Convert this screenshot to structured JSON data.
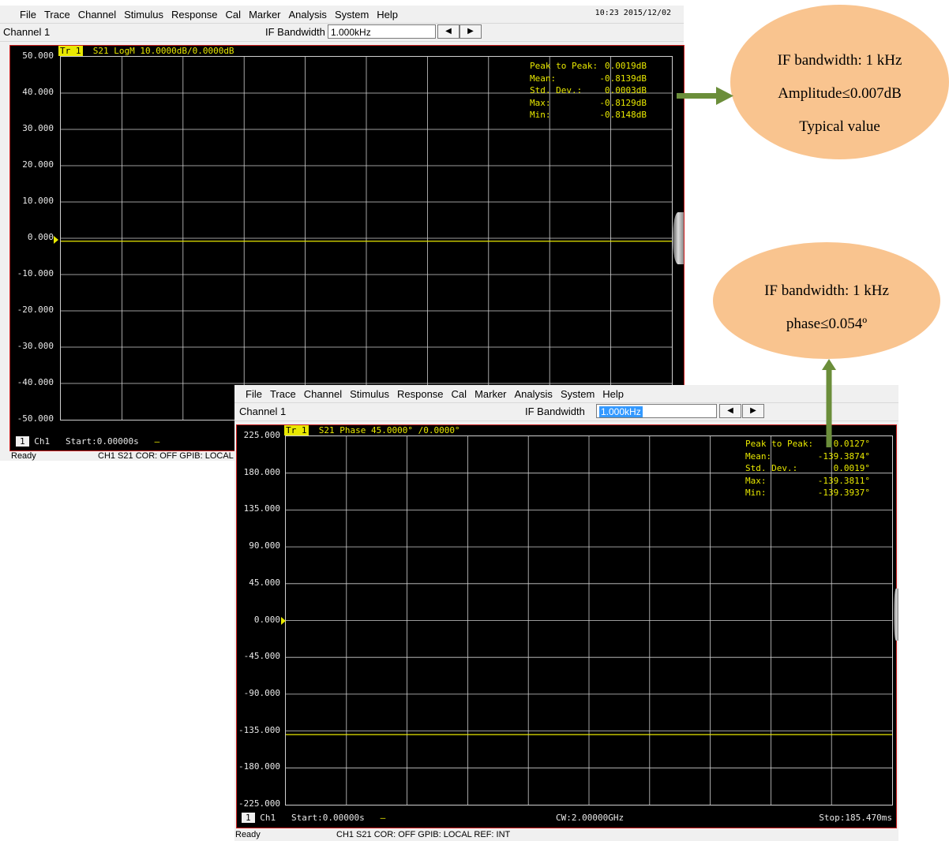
{
  "menu": [
    "File",
    "Trace",
    "Channel",
    "Stimulus",
    "Response",
    "Cal",
    "Marker",
    "Analysis",
    "System",
    "Help"
  ],
  "win1": {
    "clock": "10:23 2015/12/02",
    "channel": "Channel 1",
    "ifbw_label": "IF Bandwidth",
    "ifbw_value": "1.000kHz",
    "trace_badge": "Tr 1",
    "trace_label": "S21 LogM 10.0000dB/0.0000dB",
    "y_labels": [
      "50.000",
      "40.000",
      "30.000",
      "20.000",
      "10.000",
      "0.000",
      "-10.000",
      "-20.000",
      "-30.000",
      "-40.000",
      "-50.000"
    ],
    "stats": [
      {
        "k": "Peak to Peak:",
        "v": "0.0019dB"
      },
      {
        "k": "Mean:",
        "v": "-0.8139dB"
      },
      {
        "k": "Std. Dev.:",
        "v": "0.0003dB"
      },
      {
        "k": "Max:",
        "v": "-0.8129dB"
      },
      {
        "k": "Min:",
        "v": "-0.8148dB"
      }
    ],
    "ch_badge": "1",
    "ch_name": "Ch1",
    "start": "Start:0.00000s",
    "dash": "—",
    "status_ready": "Ready",
    "status_info": "CH1  S21  COR: OFF  GPIB: LOCAL"
  },
  "win2": {
    "channel": "Channel 1",
    "ifbw_label": "IF Bandwidth",
    "ifbw_value": "1.000kHz",
    "trace_badge": "Tr 1",
    "trace_label": "S21 Phase 45.0000° /0.0000°",
    "y_labels": [
      "225.000",
      "180.000",
      "135.000",
      "90.000",
      "45.000",
      "0.000",
      "-45.000",
      "-90.000",
      "-135.000",
      "-180.000",
      "-225.000"
    ],
    "stats": [
      {
        "k": "Peak to Peak:",
        "v": "0.0127°"
      },
      {
        "k": "Mean:",
        "v": "-139.3874°"
      },
      {
        "k": "Std. Dev.:",
        "v": "0.0019°"
      },
      {
        "k": "Max:",
        "v": "-139.3811°"
      },
      {
        "k": "Min:",
        "v": "-139.3937°"
      }
    ],
    "ch_badge": "1",
    "ch_name": "Ch1",
    "start": "Start:0.00000s",
    "dash": "—",
    "cw": "CW:2.00000GHz",
    "stop": "Stop:185.470ms",
    "status_ready": "Ready",
    "status_info": "CH1  S21  COR: OFF  GPIB: LOCAL  REF: INT"
  },
  "annotations": {
    "amp": [
      "IF bandwidth: 1 kHz",
      "Amplitude≤0.007dB",
      "Typical value"
    ],
    "phase": [
      "IF bandwidth: 1 kHz",
      "phase≤0.054º"
    ]
  },
  "colors": {
    "trace": "#e8e800",
    "grid": "#cfcfcf",
    "panel_border": "#d02020",
    "bubble": "#f9c48f",
    "arrow": "#6b8e3a"
  },
  "chart_data": [
    {
      "type": "line",
      "title": "",
      "trace": "S21 LogM",
      "ylim": [
        -50,
        50
      ],
      "series": [
        {
          "values": [
            -0.8139
          ]
        }
      ]
    },
    {
      "type": "line",
      "title": "",
      "trace": "S21 Phase",
      "ylim": [
        -225,
        225
      ],
      "series": [
        {
          "values": [
            -139.3874
          ]
        }
      ]
    }
  ]
}
